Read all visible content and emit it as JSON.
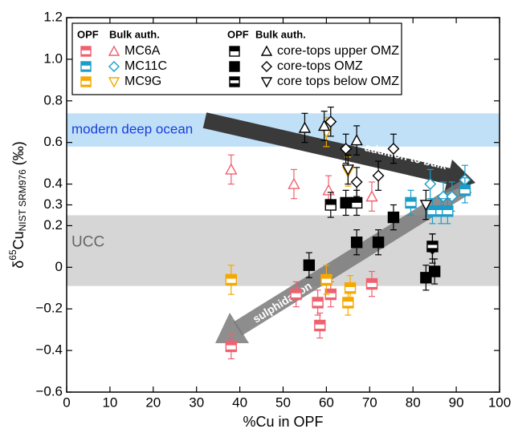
{
  "chart_data": {
    "type": "scatter",
    "xlabel": "%Cu in OPF",
    "ylabel": {
      "prefix": "δ",
      "sup": "65",
      "base": "Cu",
      "sub": "NIST SRM976",
      "suffix": "(‰)"
    },
    "xlim": [
      0,
      100
    ],
    "xticks": [
      0,
      10,
      20,
      30,
      40,
      50,
      60,
      70,
      80,
      90,
      100
    ],
    "ylim": [
      -0.6,
      1.2
    ],
    "yticks": [
      {
        "value": -0.6,
        "label": "−0.6"
      },
      {
        "value": -0.4,
        "label": "−0.4"
      },
      {
        "value": -0.2,
        "label": "−0.2"
      },
      0,
      0.2,
      0.4,
      0.6,
      0.8,
      {
        "value": 1.0,
        "label": "1.0"
      },
      0.2999999999999999,
      {
        "value": 1.2,
        "label": "1.2"
      }
    ],
    "bands": [
      {
        "label": "modern deep ocean",
        "ylim": [
          0.58,
          0.74
        ],
        "color": "#bfe0f7",
        "label_color": "#1a3fdc"
      },
      {
        "label": "UCC",
        "ylim": [
          -0.09,
          0.25
        ],
        "color": "#d6d6d6",
        "label_color": "#666666"
      }
    ],
    "annotations": [
      "addition to bulk",
      "sulphidation"
    ],
    "legend_headers": {
      "opf": "OPF",
      "bulk": "Bulk auth."
    },
    "groups": [
      {
        "name": "MC6A",
        "color": "#f0606f",
        "opf_marker": "striped",
        "bulk_marker": "triangle-up",
        "opf": {
          "x": [
            38,
            53,
            58,
            58.5,
            61,
            70.5
          ],
          "y": [
            -0.38,
            -0.13,
            -0.17,
            -0.28,
            -0.13,
            -0.08
          ],
          "yerr": [
            0.06,
            0.06,
            0.06,
            0.06,
            0.06,
            0.06
          ]
        },
        "bulk": {
          "x": [
            38,
            52.5,
            60.5,
            70.5
          ],
          "y": [
            0.47,
            0.4,
            0.37,
            0.34
          ],
          "yerr": [
            0.07,
            0.07,
            0.07,
            0.07
          ]
        }
      },
      {
        "name": "MC11C",
        "color": "#1a9dc9",
        "opf_marker": "striped",
        "bulk_marker": "diamond",
        "opf": {
          "x": [
            79.5,
            84.5,
            86.5,
            88,
            92
          ],
          "y": [
            0.31,
            0.27,
            0.27,
            0.27,
            0.37
          ],
          "yerr": [
            0.06,
            0.06,
            0.06,
            0.06,
            0.06
          ]
        },
        "bulk": {
          "x": [
            84,
            87,
            89,
            92
          ],
          "y": [
            0.4,
            0.34,
            0.34,
            0.42
          ],
          "yerr": [
            0.07,
            0.07,
            0.07,
            0.07
          ]
        }
      },
      {
        "name": "MC9G",
        "color": "#f5a800",
        "opf_marker": "striped",
        "bulk_marker": "triangle-down",
        "opf": {
          "x": [
            38,
            60,
            65,
            65.5
          ],
          "y": [
            -0.06,
            -0.06,
            -0.17,
            -0.1
          ],
          "yerr": [
            0.07,
            0.07,
            0.06,
            0.06
          ]
        },
        "bulk": {
          "x": [
            60,
            65
          ],
          "y": [
            0.65,
            0.46
          ],
          "yerr": [
            0.07,
            0.07
          ]
        }
      },
      {
        "name": "core-tops upper OMZ",
        "color": "#000000",
        "opf_marker": "half-top",
        "bulk_marker": "triangle-up",
        "opf": {
          "x": [
            61,
            67
          ],
          "y": [
            0.3,
            0.31
          ],
          "yerr": [
            0.06,
            0.06
          ]
        },
        "bulk": {
          "x": [
            55,
            59.5,
            67
          ],
          "y": [
            0.67,
            0.68,
            0.61
          ],
          "yerr": [
            0.07,
            0.07,
            0.07
          ]
        }
      },
      {
        "name": "core-tops OMZ",
        "color": "#000000",
        "opf_marker": "full",
        "bulk_marker": "diamond",
        "opf": {
          "x": [
            56,
            64.5,
            67,
            72,
            75.5,
            83,
            85
          ],
          "y": [
            0.01,
            0.31,
            0.12,
            0.12,
            0.24,
            -0.05,
            -0.02
          ],
          "yerr": [
            0.06,
            0.06,
            0.06,
            0.06,
            0.06,
            0.06,
            0.06
          ]
        },
        "bulk": {
          "x": [
            61,
            64.5,
            67,
            72,
            75.5,
            84.5
          ],
          "y": [
            0.7,
            0.57,
            0.41,
            0.44,
            0.57,
            0.09
          ],
          "yerr": [
            0.07,
            0.07,
            0.07,
            0.07,
            0.07,
            0.07
          ]
        }
      },
      {
        "name": "core tops below OMZ",
        "color": "#000000",
        "opf_marker": "half-bottom",
        "bulk_marker": "triangle-down",
        "opf": {
          "x": [
            84.5
          ],
          "y": [
            0.1
          ],
          "yerr": [
            0.06
          ]
        },
        "bulk": {
          "x": [
            65,
            83
          ],
          "y": [
            0.47,
            0.3
          ],
          "yerr": [
            0.07,
            0.07
          ]
        }
      }
    ]
  }
}
